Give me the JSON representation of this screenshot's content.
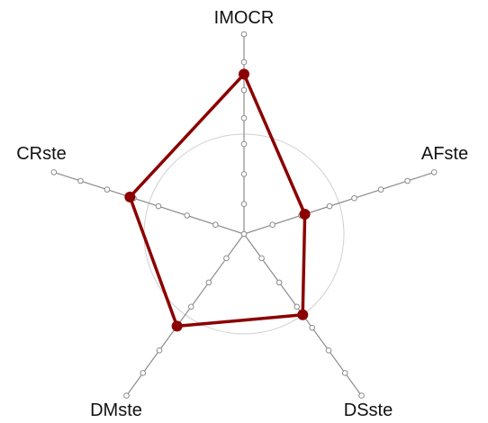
{
  "chart_data": {
    "type": "radar",
    "axes": [
      "IMOCR",
      "AFste",
      "DSste",
      "DMste",
      "CRste"
    ],
    "values": [
      0.8,
      0.32,
      0.5,
      0.57,
      0.6
    ],
    "range": [
      0,
      1
    ],
    "tick_fractions": [
      0.15,
      0.3,
      0.45,
      0.58,
      0.72,
      0.86,
      1.0
    ],
    "reference_circle": 0.5,
    "colors": {
      "series": "#8b0000",
      "axis": "#8c8c8c",
      "reference": "#d0d0d0",
      "tick_fill": "#ffffff"
    }
  }
}
